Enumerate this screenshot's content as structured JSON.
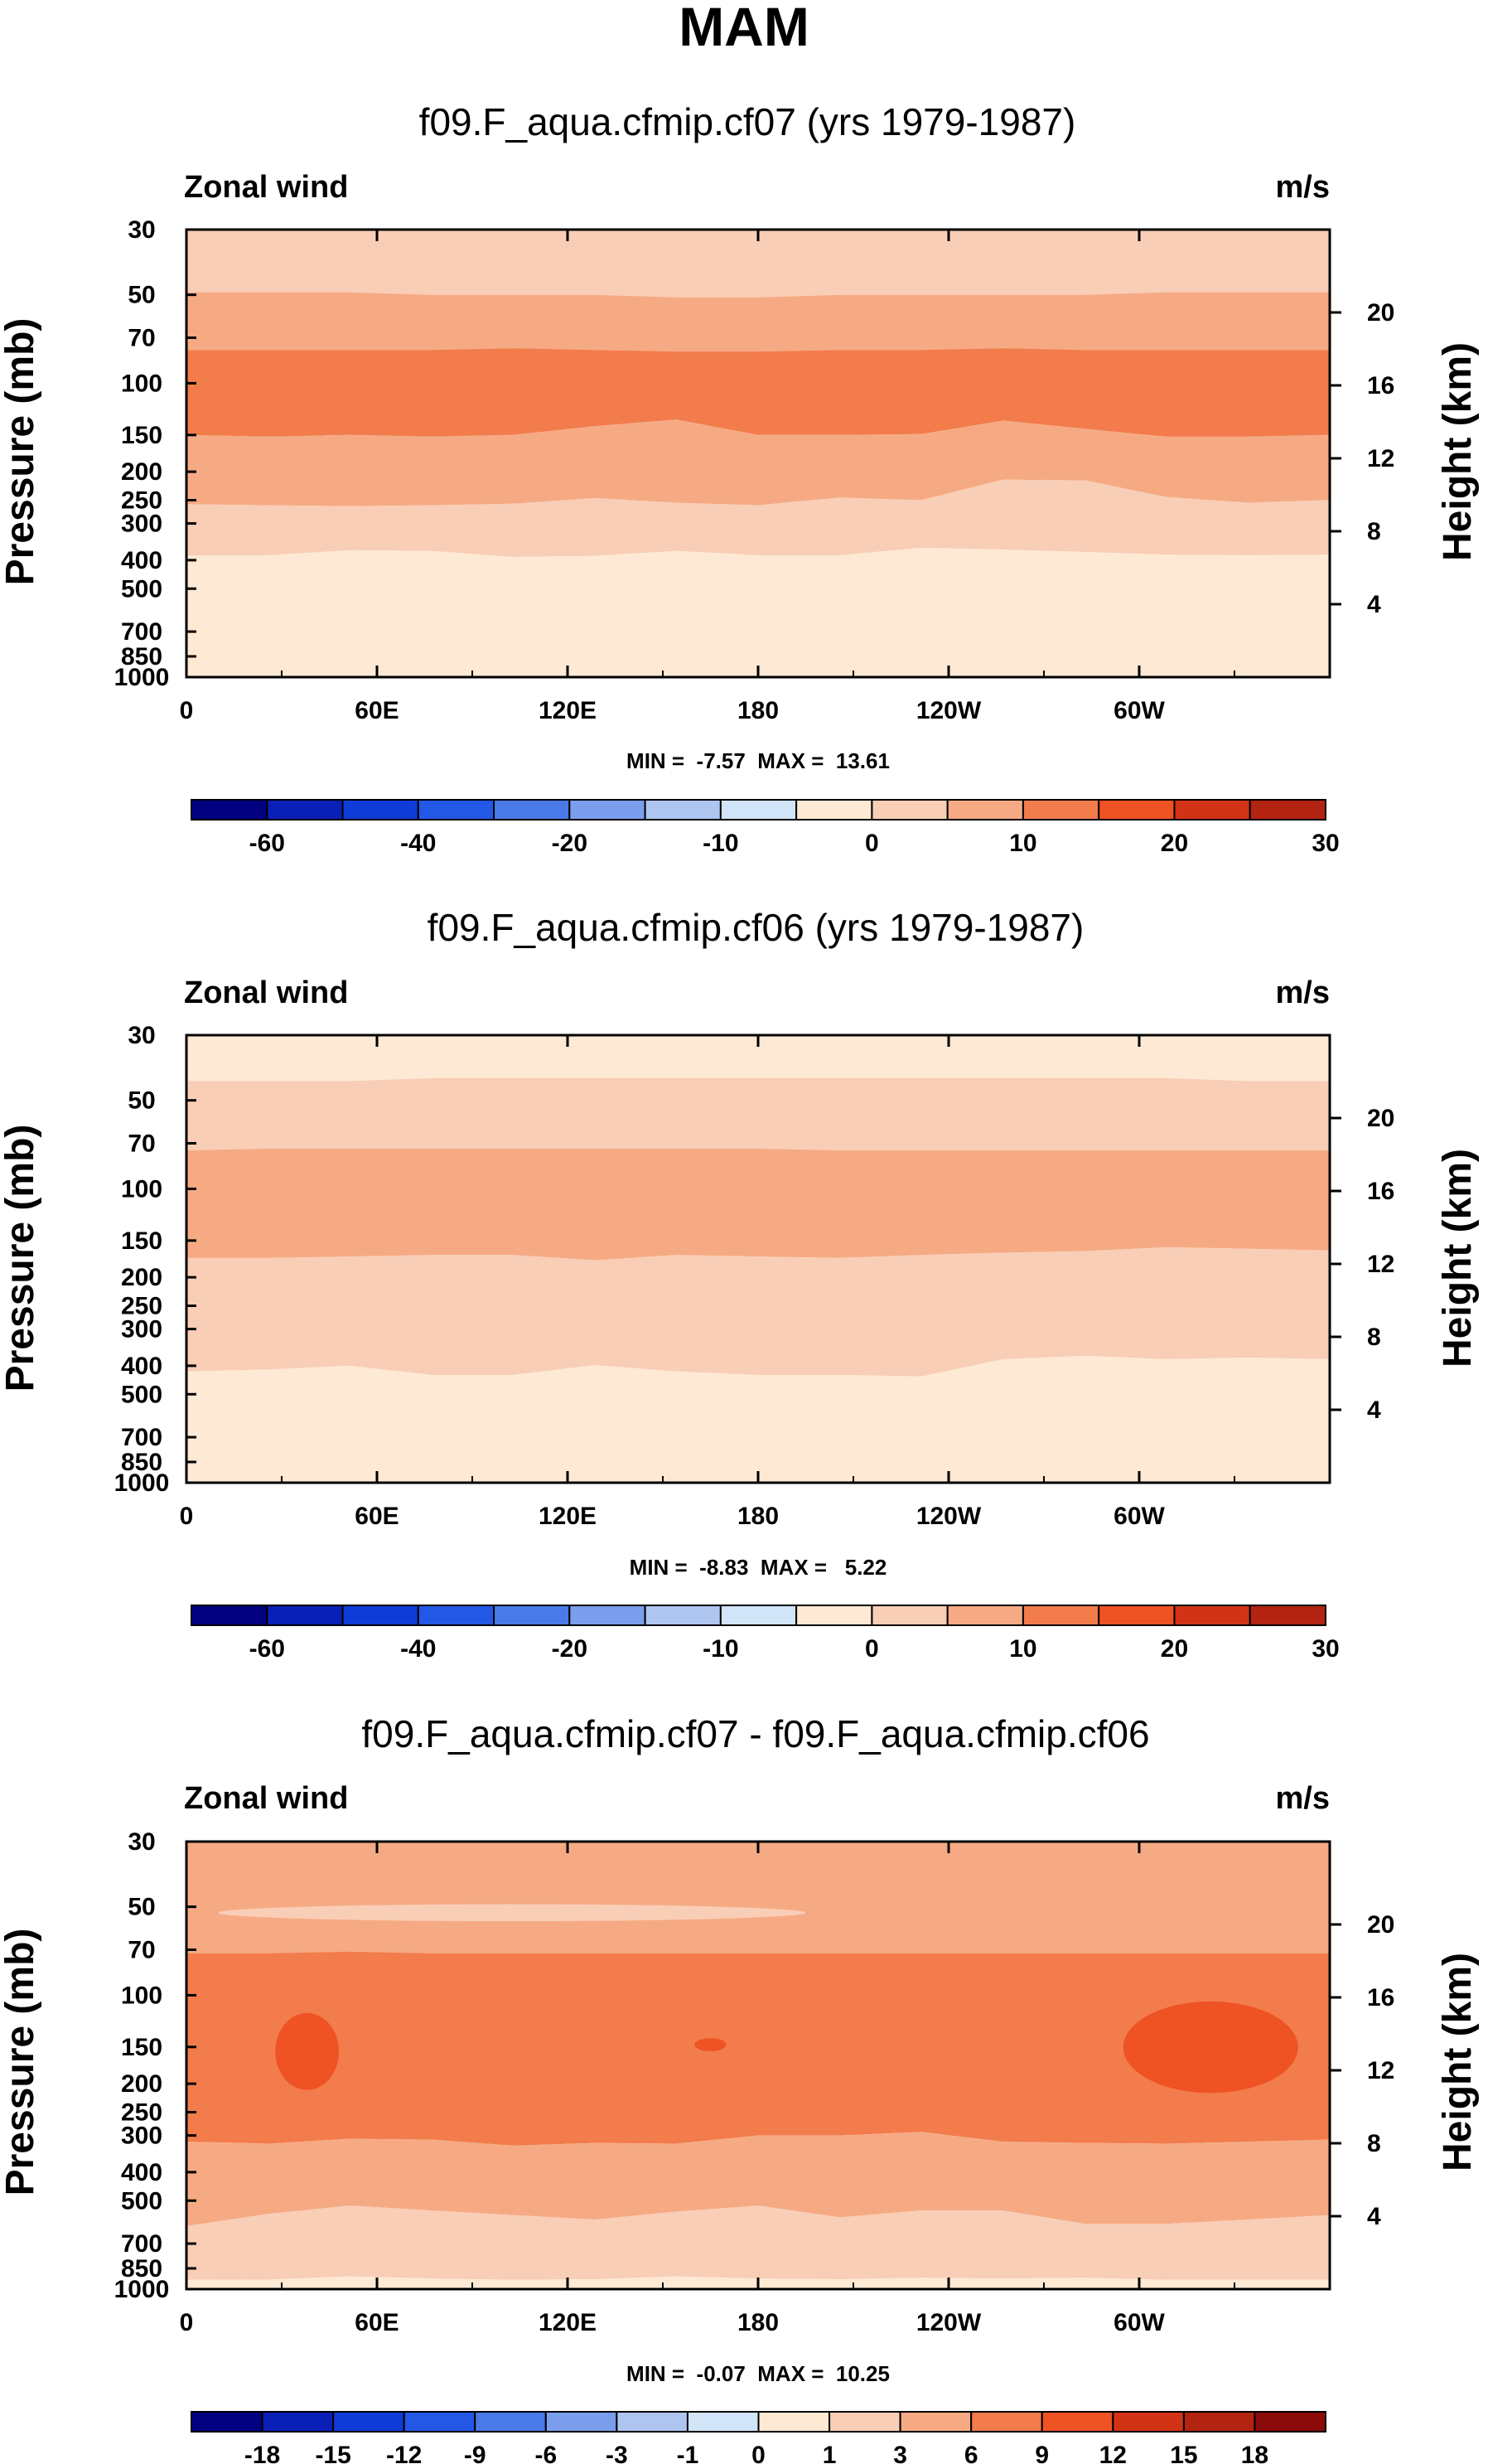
{
  "figure": {
    "title": "MAM"
  },
  "chart_data": [
    {
      "type": "heatmap",
      "title": "f09.F_aqua.cfmip.cf07 (yrs 1979-1987)",
      "left_label": "Zonal wind",
      "right_label": "m/s",
      "ylabel": "Pressure (mb)",
      "ylabel_right": "Height (km)",
      "x_tick_labels": [
        "0",
        "60E",
        "120E",
        "180",
        "120W",
        "60W"
      ],
      "y_tick_labels": [
        "30",
        "50",
        "70",
        "100",
        "150",
        "200",
        "250",
        "300",
        "400",
        "500",
        "700",
        "850",
        "1000"
      ],
      "y_ticks_right": [
        "20",
        "16",
        "12",
        "8",
        "4"
      ],
      "ylim": [
        1000,
        30
      ],
      "log_scale_y": true,
      "min_max_text": "MIN =  -7.57  MAX =  13.61",
      "min": -7.57,
      "max": 13.61,
      "colorbar": {
        "levels": [
          -70,
          -60,
          -50,
          -40,
          -30,
          -20,
          -15,
          -10,
          -5,
          0,
          5,
          10,
          15,
          20,
          25,
          30
        ],
        "labels": [
          "-60",
          "-40",
          "-20",
          "-10",
          "0",
          "10",
          "20",
          "30"
        ],
        "label_values": [
          -60,
          -40,
          -20,
          -10,
          0,
          10,
          20,
          30
        ]
      },
      "bands": [
        {
          "p_from": 30,
          "p_to": 50,
          "value": 2.5,
          "profile": [
            49,
            49,
            49,
            50,
            50,
            50,
            51,
            51,
            50,
            50,
            50,
            50,
            49,
            49,
            49
          ]
        },
        {
          "p_from": 50,
          "p_to": 76,
          "value": 7.5,
          "profile": [
            77,
            77,
            77,
            77,
            76,
            77,
            78,
            78,
            77,
            77,
            76,
            77,
            77,
            77,
            77
          ]
        },
        {
          "p_from": 76,
          "p_to": 145,
          "value": 12.5,
          "profile": [
            150,
            152,
            150,
            152,
            150,
            140,
            133,
            150,
            150,
            149,
            134,
            143,
            152,
            152,
            150
          ]
        },
        {
          "p_from": 145,
          "p_to": 370,
          "value": 7.5,
          "profile": [
            258,
            260,
            262,
            260,
            257,
            246,
            255,
            260,
            245,
            250,
            213,
            214,
            244,
            255,
            250
          ]
        },
        {
          "p_from": 370,
          "p_to": 660,
          "value": 2.5,
          "profile": [
            385,
            385,
            370,
            372,
            390,
            387,
            372,
            385,
            385,
            363,
            368,
            375,
            383,
            385,
            383
          ]
        },
        {
          "p_from": 660,
          "p_to": 1000,
          "value": -2.5,
          "profile": [
            665,
            660,
            630,
            655,
            668,
            665,
            658,
            665,
            660,
            660,
            655,
            665,
            665,
            670,
            660
          ]
        }
      ]
    },
    {
      "type": "heatmap",
      "title": "f09.F_aqua.cfmip.cf06 (yrs 1979-1987)",
      "left_label": "Zonal wind",
      "right_label": "m/s",
      "ylabel": "Pressure (mb)",
      "ylabel_right": "Height (km)",
      "x_tick_labels": [
        "0",
        "60E",
        "120E",
        "180",
        "120W",
        "60W"
      ],
      "y_tick_labels": [
        "30",
        "50",
        "70",
        "100",
        "150",
        "200",
        "250",
        "300",
        "400",
        "500",
        "700",
        "850",
        "1000"
      ],
      "y_ticks_right": [
        "20",
        "16",
        "12",
        "8",
        "4"
      ],
      "ylim": [
        1000,
        30
      ],
      "log_scale_y": true,
      "min_max_text": "MIN =  -8.83  MAX =   5.22",
      "min": -8.83,
      "max": 5.22,
      "colorbar": {
        "levels": [
          -70,
          -60,
          -50,
          -40,
          -30,
          -20,
          -15,
          -10,
          -5,
          0,
          5,
          10,
          15,
          20,
          25,
          30
        ],
        "labels": [
          "-60",
          "-40",
          "-20",
          "-10",
          "0",
          "10",
          "20",
          "30"
        ],
        "label_values": [
          -60,
          -40,
          -20,
          -10,
          0,
          10,
          20,
          30
        ]
      },
      "bands": [
        {
          "p_from": 30,
          "p_to": 42,
          "value": -2.5,
          "profile": [
            43,
            43,
            43,
            42,
            42,
            42,
            42,
            42,
            42,
            42,
            42,
            42,
            42,
            43,
            43
          ]
        },
        {
          "p_from": 42,
          "p_to": 74,
          "value": 2.5,
          "profile": [
            74,
            73,
            73,
            73,
            73,
            73,
            73,
            73,
            74,
            74,
            74,
            74,
            74,
            74,
            74
          ]
        },
        {
          "p_from": 74,
          "p_to": 170,
          "value": 7.5,
          "profile": [
            172,
            172,
            170,
            168,
            168,
            175,
            168,
            170,
            172,
            168,
            165,
            163,
            158,
            160,
            162
          ]
        },
        {
          "p_from": 170,
          "p_to": 420,
          "value": 2.5,
          "profile": [
            418,
            412,
            400,
            430,
            430,
            398,
            418,
            430,
            430,
            435,
            380,
            370,
            380,
            375,
            380
          ]
        },
        {
          "p_from": 420,
          "p_to": 1000,
          "value": -2.5,
          "profile": [
            1000,
            1000,
            1000,
            1000,
            1000,
            1000,
            1000,
            1000,
            1000,
            1000,
            1000,
            1000,
            1000,
            1000,
            1000
          ]
        }
      ]
    },
    {
      "type": "heatmap",
      "title": "f09.F_aqua.cfmip.cf07 - f09.F_aqua.cfmip.cf06",
      "left_label": "Zonal wind",
      "right_label": "m/s",
      "ylabel": "Pressure (mb)",
      "ylabel_right": "Height (km)",
      "x_tick_labels": [
        "0",
        "60E",
        "120E",
        "180",
        "120W",
        "60W"
      ],
      "y_tick_labels": [
        "30",
        "50",
        "70",
        "100",
        "150",
        "200",
        "250",
        "300",
        "400",
        "500",
        "700",
        "850",
        "1000"
      ],
      "y_ticks_right": [
        "20",
        "16",
        "12",
        "8",
        "4"
      ],
      "ylim": [
        1000,
        30
      ],
      "log_scale_y": true,
      "min_max_text": "MIN =  -0.07  MAX =  10.25",
      "min": -0.07,
      "max": 10.25,
      "colorbar": {
        "levels": [
          -21,
          -18,
          -15,
          -12,
          -9,
          -6,
          -3,
          -1,
          0,
          1,
          3,
          6,
          9,
          12,
          15,
          18,
          21
        ],
        "labels": [
          "-18",
          "-15",
          "-12",
          "-9",
          "-6",
          "-3",
          "-1",
          "0",
          "1",
          "3",
          "6",
          "9",
          "12",
          "15",
          "18"
        ],
        "label_values": [
          -18,
          -15,
          -12,
          -9,
          -6,
          -3,
          -1,
          0,
          1,
          3,
          6,
          9,
          12,
          15,
          18
        ]
      },
      "bands": [
        {
          "p_from": 30,
          "p_to": 72,
          "value": 4.5,
          "profile": [
            72,
            72,
            71,
            72,
            72,
            72,
            72,
            72,
            72,
            72,
            72,
            72,
            72,
            72,
            72
          ]
        },
        {
          "p_from": 72,
          "p_to": 310,
          "value": 7.5,
          "profile": [
            315,
            320,
            308,
            310,
            325,
            318,
            320,
            300,
            300,
            292,
            315,
            318,
            320,
            315,
            310
          ]
        },
        {
          "p_from": 310,
          "p_to": 600,
          "value": 4.5,
          "profile": [
            610,
            555,
            520,
            540,
            560,
            580,
            545,
            520,
            570,
            540,
            540,
            600,
            600,
            580,
            560
          ]
        },
        {
          "p_from": 600,
          "p_to": 930,
          "value": 2,
          "profile": [
            930,
            928,
            905,
            920,
            930,
            925,
            905,
            920,
            925,
            915,
            920,
            915,
            930,
            930,
            930
          ]
        },
        {
          "p_from": 930,
          "p_to": 1000,
          "value": 0.5,
          "profile": [
            1000,
            1000,
            1000,
            1000,
            1000,
            1000,
            1000,
            1000,
            1000,
            1000,
            1000,
            1000,
            1000,
            1000,
            1000
          ]
        }
      ],
      "islands": [
        {
          "value": 2,
          "lon_from": 10,
          "lon_to": 195,
          "p_from": 49,
          "p_to": 56
        },
        {
          "value": 10.5,
          "lon_from": 28,
          "lon_to": 48,
          "p_from": 115,
          "p_to": 210
        },
        {
          "value": 10.5,
          "lon_from": 160,
          "lon_to": 170,
          "p_from": 140,
          "p_to": 155
        },
        {
          "value": 10.5,
          "lon_from": 295,
          "lon_to": 350,
          "p_from": 105,
          "p_to": 215
        }
      ]
    }
  ]
}
